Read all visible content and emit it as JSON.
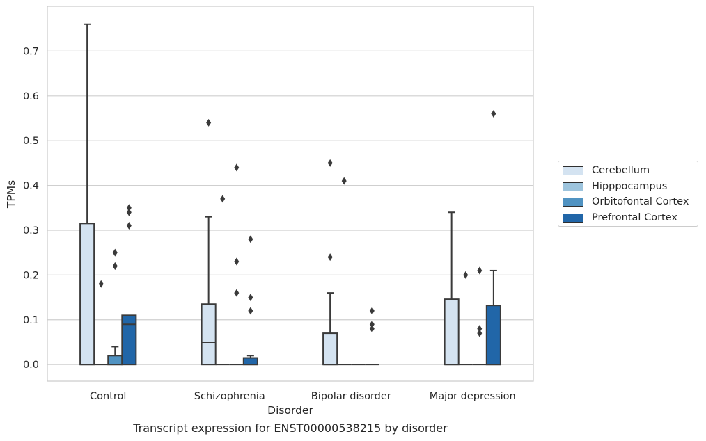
{
  "chart_data": {
    "type": "box",
    "title": "Transcript expression for ENST00000538215 by disorder",
    "xlabel": "Disorder",
    "ylabel": "TPMs",
    "categories": [
      "Control",
      "Schizophrenia",
      "Bipolar disorder",
      "Major depression"
    ],
    "ylim": [
      -0.037,
      0.8
    ],
    "yticks": [
      0.0,
      0.1,
      0.2,
      0.3,
      0.4,
      0.5,
      0.6,
      0.7
    ],
    "ytick_labels": [
      "0.0",
      "0.1",
      "0.2",
      "0.3",
      "0.4",
      "0.5",
      "0.6",
      "0.7"
    ],
    "grid": "horizontal",
    "legend_position": "right",
    "series": [
      {
        "name": "Cerebellum",
        "color": "#d4e3f1",
        "boxes": [
          {
            "q1": 0.0,
            "median": 0.0,
            "q3": 0.315,
            "whisker_low": 0.0,
            "whisker_high": 0.76,
            "outliers": []
          },
          {
            "q1": 0.0,
            "median": 0.05,
            "q3": 0.135,
            "whisker_low": 0.0,
            "whisker_high": 0.33,
            "outliers": [
              0.54
            ]
          },
          {
            "q1": 0.0,
            "median": 0.0,
            "q3": 0.07,
            "whisker_low": 0.0,
            "whisker_high": 0.16,
            "outliers": [
              0.45,
              0.24
            ]
          },
          {
            "q1": 0.0,
            "median": 0.0,
            "q3": 0.146,
            "whisker_low": 0.0,
            "whisker_high": 0.34,
            "outliers": []
          }
        ]
      },
      {
        "name": "Hipppocampus",
        "color": "#9dc4dd",
        "boxes": [
          {
            "q1": 0.0,
            "median": 0.0,
            "q3": 0.0,
            "whisker_low": 0.0,
            "whisker_high": 0.0,
            "outliers": [
              0.18
            ]
          },
          {
            "q1": 0.0,
            "median": 0.0,
            "q3": 0.0,
            "whisker_low": 0.0,
            "whisker_high": 0.0,
            "outliers": [
              0.37
            ]
          },
          {
            "q1": 0.0,
            "median": 0.0,
            "q3": 0.0,
            "whisker_low": 0.0,
            "whisker_high": 0.0,
            "outliers": [
              0.41
            ]
          },
          {
            "q1": 0.0,
            "median": 0.0,
            "q3": 0.0,
            "whisker_low": 0.0,
            "whisker_high": 0.0,
            "outliers": [
              0.2
            ]
          }
        ]
      },
      {
        "name": "Orbitofontal Cortex",
        "color": "#5093c2",
        "boxes": [
          {
            "q1": 0.0,
            "median": 0.0,
            "q3": 0.02,
            "whisker_low": 0.0,
            "whisker_high": 0.04,
            "outliers": [
              0.25,
              0.22,
              0.22
            ]
          },
          {
            "q1": 0.0,
            "median": 0.0,
            "q3": 0.0,
            "whisker_low": 0.0,
            "whisker_high": 0.0,
            "outliers": [
              0.44,
              0.23,
              0.16
            ]
          },
          {
            "q1": 0.0,
            "median": 0.0,
            "q3": 0.0,
            "whisker_low": 0.0,
            "whisker_high": 0.0,
            "outliers": []
          },
          {
            "q1": 0.0,
            "median": 0.0,
            "q3": 0.0,
            "whisker_low": 0.0,
            "whisker_high": 0.0,
            "outliers": [
              0.21,
              0.08,
              0.07
            ]
          }
        ]
      },
      {
        "name": "Prefrontal Cortex",
        "color": "#2166a8",
        "boxes": [
          {
            "q1": 0.0,
            "median": 0.09,
            "q3": 0.11,
            "whisker_low": 0.0,
            "whisker_high": 0.11,
            "outliers": [
              0.35,
              0.34,
              0.31
            ]
          },
          {
            "q1": 0.0,
            "median": 0.0,
            "q3": 0.015,
            "whisker_low": 0.0,
            "whisker_high": 0.02,
            "outliers": [
              0.28,
              0.15,
              0.12
            ]
          },
          {
            "q1": 0.0,
            "median": 0.0,
            "q3": 0.0,
            "whisker_low": 0.0,
            "whisker_high": 0.0,
            "outliers": [
              0.12,
              0.09,
              0.08
            ]
          },
          {
            "q1": 0.0,
            "median": 0.0,
            "q3": 0.132,
            "whisker_low": 0.0,
            "whisker_high": 0.21,
            "outliers": [
              0.56
            ]
          }
        ]
      }
    ]
  }
}
